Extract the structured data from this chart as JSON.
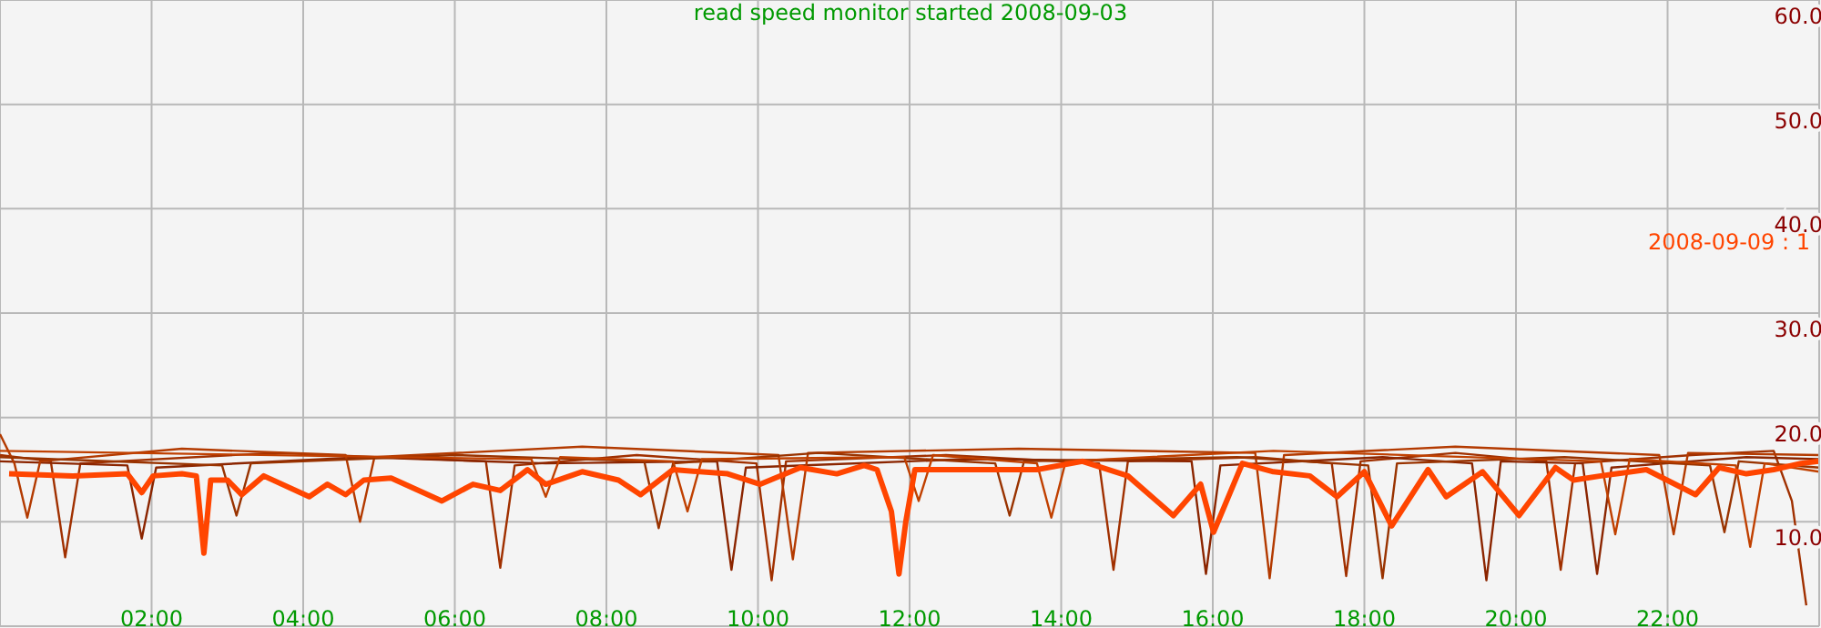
{
  "chart_data": {
    "type": "line",
    "title": "read speed monitor started 2008-09-03",
    "xlim": [
      0,
      24
    ],
    "ylim": [
      0,
      60
    ],
    "xticks": [
      {
        "value": 2,
        "label": "02:00"
      },
      {
        "value": 4,
        "label": "04:00"
      },
      {
        "value": 6,
        "label": "06:00"
      },
      {
        "value": 8,
        "label": "08:00"
      },
      {
        "value": 10,
        "label": "10:00"
      },
      {
        "value": 12,
        "label": "12:00"
      },
      {
        "value": 14,
        "label": "14:00"
      },
      {
        "value": 16,
        "label": "16:00"
      },
      {
        "value": 18,
        "label": "18:00"
      },
      {
        "value": 20,
        "label": "20:00"
      },
      {
        "value": 22,
        "label": "22:00"
      }
    ],
    "yticks": [
      {
        "value": 10,
        "label": "10.0"
      },
      {
        "value": 20,
        "label": "20.0"
      },
      {
        "value": 30,
        "label": "30.0"
      },
      {
        "value": 40,
        "label": "40.0"
      },
      {
        "value": 50,
        "label": "50.0"
      },
      {
        "value": 60,
        "label": "60.0"
      }
    ],
    "grid": true,
    "legend": false,
    "marker": "none",
    "line_style": "solid",
    "series": [
      {
        "color": "#a03000",
        "x": [
          0,
          0.67,
          0.86,
          1.06,
          3.6,
          6.41,
          6.6,
          6.79,
          8.4,
          9.98,
          10.18,
          10.37,
          12.48,
          14.5,
          14.69,
          14.88,
          16.56,
          17.57,
          17.76,
          17.95,
          19.2,
          20.4,
          20.59,
          20.78,
          22.32,
          23.4,
          23.64,
          23.83
        ],
        "values": [
          16.4,
          15.8,
          6.6,
          15.6,
          16.6,
          15.8,
          5.6,
          15.4,
          16.4,
          15.6,
          4.4,
          15.8,
          16.4,
          15.6,
          5.4,
          15.8,
          16.2,
          15.6,
          4.8,
          15.8,
          16.6,
          15.8,
          5.4,
          15.6,
          16.4,
          16.8,
          12,
          2
        ]
      },
      {
        "color": "#8b2500",
        "x": [
          0,
          1.68,
          1.87,
          2.06,
          4.8,
          7.2,
          9.46,
          9.65,
          9.84,
          12.72,
          15.72,
          15.91,
          16.1,
          18.24,
          19.42,
          19.61,
          19.8,
          20.88,
          21.07,
          21.26,
          23.04,
          24
        ],
        "values": [
          15.8,
          15.4,
          8.4,
          15.2,
          16.2,
          15.6,
          15.8,
          5.4,
          15.2,
          16,
          15.8,
          5,
          15.4,
          16.2,
          15.6,
          4.4,
          15.8,
          15.6,
          5,
          15.2,
          16.2,
          16
        ]
      },
      {
        "color": "#b33a00",
        "x": [
          0,
          0.19,
          0.36,
          0.53,
          2.4,
          4.56,
          4.75,
          4.94,
          7.68,
          10.27,
          10.46,
          10.66,
          13.44,
          16.56,
          16.75,
          16.94,
          19.2,
          21.89,
          22.08,
          22.27,
          24
        ],
        "values": [
          18.4,
          15.6,
          10.4,
          15.8,
          17,
          16.4,
          10,
          16.2,
          17.2,
          16.4,
          6.4,
          16.6,
          17,
          16.6,
          4.6,
          16.4,
          17.2,
          16.4,
          8.8,
          16.6,
          16.4
        ]
      },
      {
        "color": "#993300",
        "x": [
          0,
          2.93,
          3.12,
          3.31,
          6,
          8.5,
          8.69,
          8.88,
          10.8,
          13.13,
          13.32,
          13.51,
          16.32,
          18.05,
          18.24,
          18.43,
          20.64,
          22.56,
          22.75,
          22.94,
          24
        ],
        "values": [
          16.2,
          15.4,
          10.6,
          15.6,
          16.4,
          15.8,
          9.4,
          15.6,
          16.6,
          15.6,
          10.6,
          15.8,
          16.2,
          15.4,
          4.6,
          15.6,
          16.2,
          15.4,
          9,
          15.8,
          15.2
        ]
      },
      {
        "color": "#c04000",
        "x": [
          0,
          7.01,
          7.2,
          7.39,
          8.88,
          9.07,
          9.26,
          11.93,
          12.12,
          12.31,
          13.68,
          13.87,
          14.06,
          16.8,
          21.12,
          21.31,
          21.5,
          22.9,
          23.09,
          23.28,
          24
        ],
        "values": [
          16.8,
          16,
          12.4,
          16.2,
          15.8,
          11,
          16,
          16.2,
          12,
          16.4,
          15.6,
          10.4,
          15.8,
          16.8,
          15.8,
          8.8,
          16,
          15.4,
          7.6,
          15.6,
          14.8
        ]
      },
      {
        "name": "2008-09-09 : 1",
        "color": "#ff4500",
        "x": [
          0.12,
          0.96,
          1.68,
          1.87,
          2.02,
          2.4,
          2.59,
          2.69,
          2.78,
          3,
          3.19,
          3.48,
          4.08,
          4.32,
          4.56,
          4.8,
          5.16,
          5.83,
          6.24,
          6.6,
          6.96,
          7.2,
          7.68,
          8.16,
          8.45,
          8.88,
          9.6,
          10.03,
          10.56,
          11.04,
          11.4,
          11.57,
          11.76,
          11.86,
          11.95,
          12.07,
          12.96,
          13.68,
          14.28,
          14.88,
          15.48,
          15.84,
          16.01,
          16.39,
          16.8,
          17.28,
          17.64,
          18,
          18.36,
          18.84,
          19.08,
          19.56,
          20.04,
          20.52,
          20.76,
          21.12,
          21.72,
          22.37,
          22.68,
          23.04,
          23.4,
          23.76,
          24
        ],
        "values": [
          14.6,
          14.4,
          14.6,
          12.8,
          14.4,
          14.6,
          14.4,
          7,
          14,
          14,
          12.6,
          14.4,
          12.4,
          13.6,
          12.6,
          14,
          14.2,
          12,
          13.6,
          13,
          15,
          13.6,
          14.8,
          14,
          12.6,
          15,
          14.6,
          13.6,
          15.2,
          14.6,
          15.4,
          15,
          11,
          5,
          10,
          15,
          15,
          15,
          15.8,
          14.4,
          10.6,
          13.6,
          9,
          15.6,
          14.8,
          14.4,
          12.4,
          14.8,
          9.6,
          15,
          12.4,
          14.8,
          10.6,
          15.2,
          14,
          14.4,
          15,
          12.6,
          15.2,
          14.6,
          15,
          15.6,
          15.8
        ]
      }
    ]
  }
}
